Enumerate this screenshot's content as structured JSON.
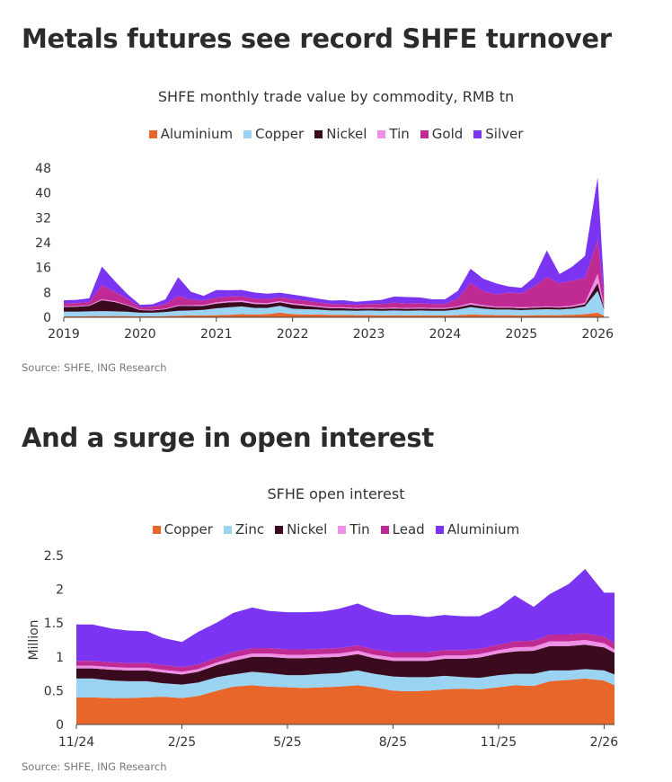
{
  "chart_data": [
    {
      "type": "area",
      "headline": "Metals futures see record SHFE turnover",
      "title": "SHFE monthly trade value by commodity, RMB tn",
      "source": "Source: SHFE, ING Research",
      "stacked": true,
      "ylim": [
        0,
        48
      ],
      "yticks": [
        "0",
        "8",
        "16",
        "24",
        "32",
        "40",
        "48"
      ],
      "xlim": [
        2019,
        2026.15
      ],
      "xticks": [
        "2019",
        "2020",
        "2021",
        "2022",
        "2023",
        "2024",
        "2025",
        "2026"
      ],
      "legend_position": "top",
      "x": [
        "2019-01",
        "2019-03",
        "2019-05",
        "2019-07",
        "2019-09",
        "2019-11",
        "2020-01",
        "2020-03",
        "2020-05",
        "2020-07",
        "2020-09",
        "2020-11",
        "2021-01",
        "2021-03",
        "2021-05",
        "2021-07",
        "2021-09",
        "2021-11",
        "2022-01",
        "2022-03",
        "2022-05",
        "2022-07",
        "2022-09",
        "2022-11",
        "2023-01",
        "2023-03",
        "2023-05",
        "2023-07",
        "2023-09",
        "2023-11",
        "2024-01",
        "2024-03",
        "2024-05",
        "2024-07",
        "2024-09",
        "2024-11",
        "2025-01",
        "2025-03",
        "2025-05",
        "2025-07",
        "2025-09",
        "2025-11",
        "2026-01",
        "2026-02"
      ],
      "series": [
        {
          "name": "Aluminium",
          "color": "#e8662a",
          "values": [
            0.3,
            0.3,
            0.4,
            0.4,
            0.4,
            0.4,
            0.3,
            0.3,
            0.4,
            0.5,
            0.6,
            0.6,
            0.7,
            0.8,
            1.0,
            0.9,
            1.0,
            1.5,
            1.0,
            0.9,
            0.9,
            0.8,
            0.8,
            0.7,
            0.7,
            0.6,
            0.6,
            0.6,
            0.6,
            0.6,
            0.6,
            0.7,
            0.9,
            0.8,
            0.7,
            0.7,
            0.6,
            0.7,
            0.7,
            0.7,
            0.8,
            1.0,
            1.5,
            0.5
          ]
        },
        {
          "name": "Copper",
          "color": "#9ad4f2",
          "values": [
            1.5,
            1.5,
            1.5,
            1.6,
            1.5,
            1.4,
            1.2,
            1.2,
            1.3,
            1.6,
            1.6,
            1.8,
            2.2,
            2.4,
            2.5,
            2.1,
            2.0,
            2.2,
            1.8,
            1.7,
            1.6,
            1.4,
            1.4,
            1.4,
            1.5,
            1.5,
            1.6,
            1.5,
            1.6,
            1.5,
            1.5,
            1.8,
            2.4,
            2.0,
            1.8,
            1.8,
            1.7,
            1.8,
            1.9,
            1.8,
            2.0,
            2.5,
            7.0,
            2.0
          ]
        },
        {
          "name": "Nickel",
          "color": "#3a0b1f",
          "values": [
            1.5,
            1.6,
            1.8,
            3.5,
            3.0,
            2.0,
            0.8,
            0.7,
            0.9,
            1.5,
            1.4,
            1.3,
            1.5,
            1.6,
            1.4,
            1.3,
            1.2,
            1.1,
            1.3,
            1.1,
            0.8,
            0.7,
            0.7,
            0.6,
            0.6,
            0.6,
            0.6,
            0.6,
            0.6,
            0.6,
            0.6,
            0.7,
            0.8,
            0.7,
            0.6,
            0.6,
            0.6,
            0.6,
            0.6,
            0.6,
            0.6,
            0.7,
            2.5,
            0.5
          ]
        },
        {
          "name": "Tin",
          "color": "#ee90e6",
          "values": [
            0.2,
            0.2,
            0.2,
            0.3,
            0.3,
            0.2,
            0.2,
            0.2,
            0.2,
            0.3,
            0.3,
            0.3,
            0.4,
            0.4,
            0.5,
            0.4,
            0.4,
            0.4,
            0.4,
            0.4,
            0.3,
            0.3,
            0.3,
            0.3,
            0.3,
            0.3,
            0.3,
            0.3,
            0.3,
            0.3,
            0.3,
            0.3,
            0.5,
            0.4,
            0.3,
            0.3,
            0.3,
            0.3,
            0.3,
            0.3,
            0.4,
            0.5,
            3.0,
            0.5
          ]
        },
        {
          "name": "Gold",
          "color": "#c02a93",
          "values": [
            1.0,
            1.0,
            1.0,
            4.5,
            3.0,
            2.0,
            0.8,
            1.0,
            1.5,
            3.0,
            1.8,
            1.4,
            1.5,
            1.5,
            1.4,
            1.3,
            1.3,
            1.2,
            1.3,
            1.3,
            1.2,
            1.1,
            1.0,
            1.0,
            1.2,
            1.3,
            1.6,
            1.5,
            1.5,
            1.3,
            1.3,
            2.5,
            6.5,
            4.5,
            4.0,
            4.5,
            4.5,
            6.5,
            9.5,
            7.5,
            8.0,
            8.0,
            11.0,
            3.5
          ]
        },
        {
          "name": "Silver",
          "color": "#7a34f2",
          "values": [
            1.0,
            1.0,
            1.2,
            6.0,
            3.5,
            1.5,
            0.7,
            0.8,
            1.5,
            6.0,
            2.5,
            1.5,
            2.5,
            2.0,
            2.0,
            2.0,
            1.7,
            1.5,
            1.5,
            1.3,
            1.2,
            1.1,
            1.3,
            1.0,
            1.0,
            1.3,
            2.0,
            2.0,
            1.8,
            1.5,
            1.5,
            2.5,
            4.5,
            4.0,
            3.5,
            2.0,
            1.8,
            3.0,
            8.5,
            3.0,
            4.5,
            7.0,
            20.0,
            3.0
          ]
        }
      ]
    },
    {
      "type": "area",
      "headline": "And a surge in open interest",
      "title": "SFHE open interest",
      "source": "Source: SHFE, ING Research",
      "stacked": true,
      "ylabel": "Million",
      "ylim": [
        0,
        2.5
      ],
      "yticks": [
        "0",
        "0.5",
        "1",
        "1.5",
        "2",
        "2.5"
      ],
      "xticks": [
        "11/24",
        "2/25",
        "5/25",
        "8/25",
        "11/25",
        "2/26"
      ],
      "legend_position": "top",
      "x": [
        "2024-11-01",
        "2024-11-15",
        "2024-12-01",
        "2024-12-15",
        "2025-01-01",
        "2025-01-15",
        "2025-02-01",
        "2025-02-15",
        "2025-03-01",
        "2025-03-15",
        "2025-04-01",
        "2025-04-15",
        "2025-05-01",
        "2025-05-15",
        "2025-06-01",
        "2025-06-15",
        "2025-07-01",
        "2025-07-15",
        "2025-08-01",
        "2025-08-15",
        "2025-09-01",
        "2025-09-15",
        "2025-10-01",
        "2025-10-15",
        "2025-11-01",
        "2025-11-15",
        "2025-12-01",
        "2025-12-15",
        "2026-01-01",
        "2026-01-15",
        "2026-02-01",
        "2026-02-10"
      ],
      "series": [
        {
          "name": "Copper",
          "color": "#e8662a",
          "values": [
            0.4,
            0.4,
            0.39,
            0.39,
            0.4,
            0.41,
            0.39,
            0.42,
            0.5,
            0.56,
            0.58,
            0.56,
            0.55,
            0.54,
            0.55,
            0.56,
            0.58,
            0.55,
            0.5,
            0.49,
            0.5,
            0.52,
            0.53,
            0.52,
            0.55,
            0.58,
            0.57,
            0.64,
            0.66,
            0.68,
            0.65,
            0.58
          ]
        },
        {
          "name": "Zinc",
          "color": "#9ad4f2",
          "values": [
            0.28,
            0.28,
            0.26,
            0.25,
            0.24,
            0.2,
            0.2,
            0.2,
            0.2,
            0.18,
            0.2,
            0.2,
            0.18,
            0.19,
            0.2,
            0.2,
            0.22,
            0.2,
            0.21,
            0.21,
            0.2,
            0.2,
            0.17,
            0.17,
            0.18,
            0.17,
            0.18,
            0.16,
            0.14,
            0.14,
            0.15,
            0.16
          ]
        },
        {
          "name": "Nickel",
          "color": "#3a0b1f",
          "values": [
            0.15,
            0.15,
            0.16,
            0.16,
            0.16,
            0.16,
            0.15,
            0.16,
            0.18,
            0.2,
            0.22,
            0.24,
            0.25,
            0.25,
            0.24,
            0.24,
            0.24,
            0.23,
            0.23,
            0.24,
            0.24,
            0.25,
            0.27,
            0.3,
            0.32,
            0.33,
            0.34,
            0.36,
            0.36,
            0.36,
            0.34,
            0.32
          ]
        },
        {
          "name": "Tin",
          "color": "#ee90e6",
          "values": [
            0.04,
            0.04,
            0.04,
            0.04,
            0.04,
            0.04,
            0.04,
            0.04,
            0.04,
            0.05,
            0.05,
            0.05,
            0.05,
            0.05,
            0.05,
            0.05,
            0.05,
            0.05,
            0.05,
            0.05,
            0.05,
            0.05,
            0.05,
            0.05,
            0.05,
            0.06,
            0.06,
            0.07,
            0.07,
            0.07,
            0.06,
            0.05
          ]
        },
        {
          "name": "Lead",
          "color": "#c02a93",
          "values": [
            0.07,
            0.07,
            0.07,
            0.07,
            0.07,
            0.07,
            0.07,
            0.07,
            0.07,
            0.08,
            0.08,
            0.08,
            0.08,
            0.08,
            0.08,
            0.08,
            0.08,
            0.08,
            0.08,
            0.08,
            0.08,
            0.08,
            0.08,
            0.08,
            0.08,
            0.09,
            0.09,
            0.1,
            0.1,
            0.1,
            0.1,
            0.09
          ]
        },
        {
          "name": "Aluminium",
          "color": "#7a34f2",
          "values": [
            0.54,
            0.54,
            0.5,
            0.48,
            0.47,
            0.4,
            0.37,
            0.48,
            0.52,
            0.58,
            0.6,
            0.55,
            0.55,
            0.55,
            0.55,
            0.58,
            0.62,
            0.58,
            0.55,
            0.55,
            0.52,
            0.52,
            0.5,
            0.48,
            0.55,
            0.68,
            0.5,
            0.6,
            0.75,
            0.95,
            0.65,
            0.75
          ]
        }
      ]
    }
  ]
}
